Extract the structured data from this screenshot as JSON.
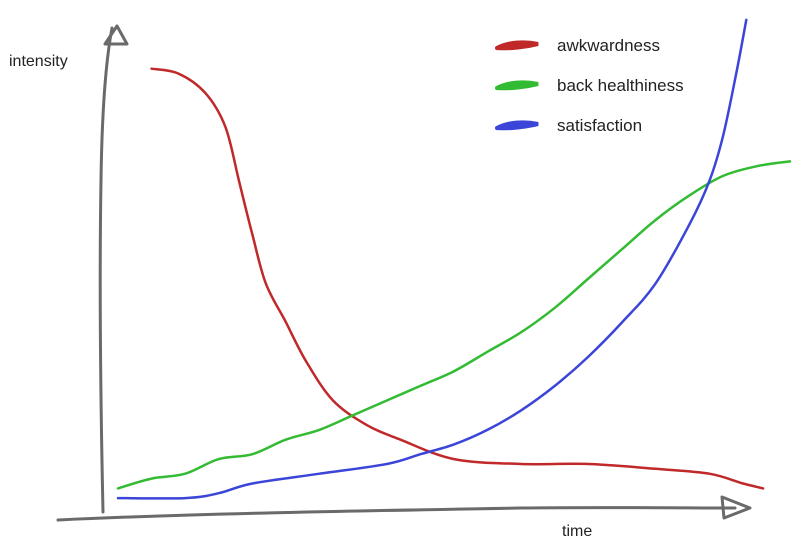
{
  "chart_data": {
    "type": "line",
    "title": "",
    "xlabel": "time",
    "ylabel": "intensity",
    "xlim": [
      0,
      100
    ],
    "ylim": [
      0,
      100
    ],
    "grid": false,
    "legend_position": "top-right",
    "series": [
      {
        "name": "awkwardness",
        "color": "#c0282a",
        "x": [
          5,
          9,
          13,
          16,
          18,
          20,
          22,
          25,
          28,
          32,
          37,
          42,
          50,
          60,
          70,
          80,
          88,
          93,
          96
        ],
        "y": [
          89,
          88,
          84,
          77,
          66,
          55,
          45,
          37,
          29,
          21,
          16,
          13,
          9,
          8,
          8,
          7,
          6,
          4,
          3
        ]
      },
      {
        "name": "back healthiness",
        "color": "#33bb33",
        "x": [
          0,
          5,
          10,
          15,
          20,
          25,
          30,
          35,
          40,
          45,
          50,
          55,
          60,
          65,
          70,
          75,
          80,
          85,
          90,
          95,
          100
        ],
        "y": [
          3,
          5,
          6,
          9,
          10,
          13,
          15,
          18,
          21,
          24,
          27,
          31,
          35,
          40,
          46,
          52,
          58,
          63,
          67,
          69,
          70
        ]
      },
      {
        "name": "satisfaction",
        "color": "#3b45d8",
        "x": [
          0,
          10,
          15,
          20,
          30,
          40,
          45,
          50,
          55,
          60,
          65,
          70,
          75,
          80,
          85,
          88,
          90,
          92,
          93.5
        ],
        "y": [
          1,
          1,
          2,
          4,
          6,
          8,
          10,
          12,
          15,
          19,
          24,
          30,
          37,
          45,
          57,
          66,
          75,
          88,
          99
        ]
      }
    ]
  }
}
